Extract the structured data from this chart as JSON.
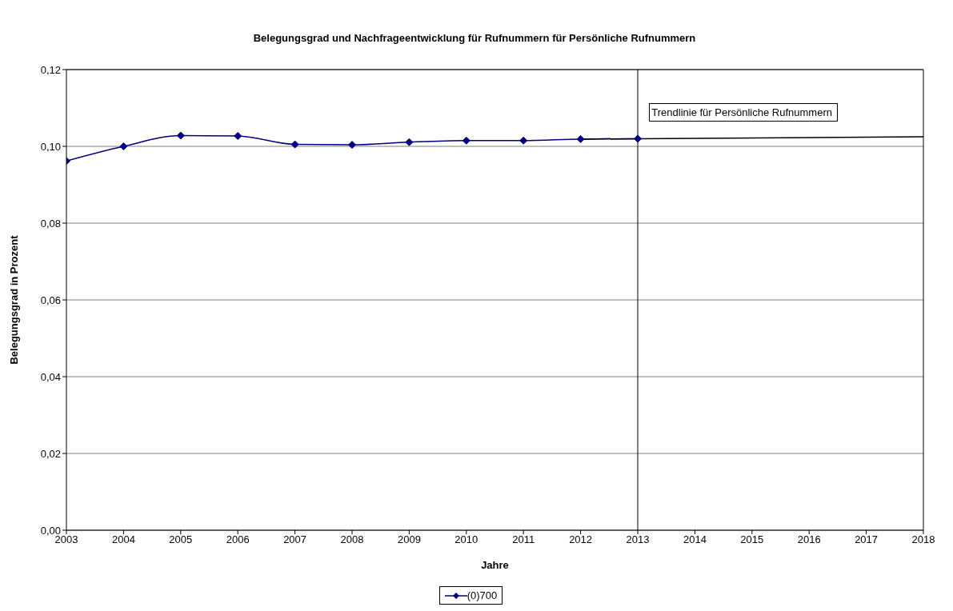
{
  "chart_data": {
    "type": "line",
    "title": "Belegungsgrad und Nachfrageentwicklung für Rufnummern für Persönliche Rufnummern",
    "xlabel": "Jahre",
    "ylabel": "Belegungsgrad in Prozent",
    "x": [
      2003,
      2004,
      2005,
      2006,
      2007,
      2008,
      2009,
      2010,
      2011,
      2012,
      2013
    ],
    "series": [
      {
        "name": "(0)700",
        "color": "#000080",
        "marker": "diamond",
        "values": [
          0.0962,
          0.1,
          0.1028,
          0.1027,
          0.1005,
          0.1004,
          0.1011,
          0.1015,
          0.1015,
          0.1019,
          0.102
        ]
      },
      {
        "color": "#000000",
        "marker": "none",
        "x": [
          2012,
          2018
        ],
        "values": [
          0.1019,
          0.1025
        ]
      }
    ],
    "ref_lines": [
      {
        "axis": "x",
        "value": 2013,
        "color": "#000000"
      }
    ],
    "annotations": [
      "Trendlinie für Persönliche Rufnummern"
    ],
    "xlim": [
      2003,
      2018
    ],
    "xticks": [
      2003,
      2004,
      2005,
      2006,
      2007,
      2008,
      2009,
      2010,
      2011,
      2012,
      2013,
      2014,
      2015,
      2016,
      2017,
      2018
    ],
    "ylim": [
      0,
      0.12
    ],
    "yticks": [
      {
        "value": 0,
        "label": "0,00"
      },
      {
        "value": 0.02,
        "label": "0,02"
      },
      {
        "value": 0.04,
        "label": "0,04"
      },
      {
        "value": 0.06,
        "label": "0,06"
      },
      {
        "value": 0.08,
        "label": "0,08"
      },
      {
        "value": 0.1,
        "label": "0,10"
      },
      {
        "value": 0.12,
        "label": "0,12"
      }
    ],
    "grid": "y",
    "legend": "bottom"
  }
}
